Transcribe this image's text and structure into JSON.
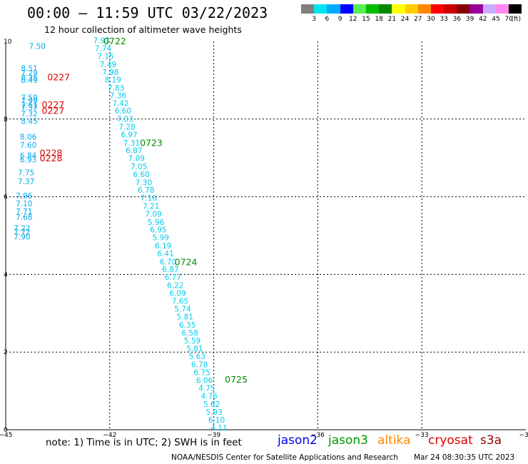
{
  "header": {
    "title": "00:00 – 11:59 UTC 03/22/2023",
    "subtitle": "12 hour collection of altimeter wave heights"
  },
  "color_scale": {
    "unit_label": "(ft)",
    "cells": [
      {
        "label": "3",
        "color": "#808080"
      },
      {
        "label": "6",
        "color": "#00e5ee"
      },
      {
        "label": "9",
        "color": "#00aaff"
      },
      {
        "label": "12",
        "color": "#0000ff"
      },
      {
        "label": "15",
        "color": "#55ee55"
      },
      {
        "label": "18",
        "color": "#00bb00"
      },
      {
        "label": "21",
        "color": "#008800"
      },
      {
        "label": "24",
        "color": "#ffff00"
      },
      {
        "label": "27",
        "color": "#ffcc00"
      },
      {
        "label": "30",
        "color": "#ff8800"
      },
      {
        "label": "33",
        "color": "#ff0000"
      },
      {
        "label": "36",
        "color": "#cc0000"
      },
      {
        "label": "39",
        "color": "#880000"
      },
      {
        "label": "42",
        "color": "#990099"
      },
      {
        "label": "45",
        "color": "#ccaaff"
      },
      {
        "label": "70",
        "color": "#ff88ee"
      },
      {
        "label": "",
        "color": "#000000"
      }
    ]
  },
  "map": {
    "lon_range": [
      -45,
      -30
    ],
    "lat_range": [
      0,
      10
    ],
    "x_ticks": [
      {
        "value": -45,
        "label": "−45"
      },
      {
        "value": -42,
        "label": "−42"
      },
      {
        "value": -39,
        "label": "−39"
      },
      {
        "value": -36,
        "label": "−36"
      },
      {
        "value": -33,
        "label": "−33"
      },
      {
        "value": -30,
        "label": "−30"
      }
    ],
    "y_ticks": [
      {
        "value": 0,
        "label": "0"
      },
      {
        "value": 2,
        "label": "2"
      },
      {
        "value": 4,
        "label": "4"
      },
      {
        "value": 6,
        "label": "6"
      },
      {
        "value": 8,
        "label": "8"
      },
      {
        "value": 10,
        "label": "10"
      }
    ],
    "gridlines": true
  },
  "chart_data": {
    "type": "scatter",
    "x_axis": "longitude",
    "y_axis": "latitude",
    "xlim": [
      -45,
      -30
    ],
    "ylim": [
      0,
      10
    ],
    "series": [
      {
        "name": "jason3",
        "color": "#00ccee",
        "points": [
          {
            "x": -42.48,
            "y": 9.95,
            "label": "7.97"
          },
          {
            "x": -42.43,
            "y": 9.75,
            "label": "7.74"
          },
          {
            "x": -42.36,
            "y": 9.55,
            "label": "7.15"
          },
          {
            "x": -42.29,
            "y": 9.34,
            "label": "7.49"
          },
          {
            "x": -42.22,
            "y": 9.14,
            "label": "7.98"
          },
          {
            "x": -42.15,
            "y": 8.94,
            "label": "8.19"
          },
          {
            "x": -42.06,
            "y": 8.73,
            "label": "7.83"
          },
          {
            "x": -42.0,
            "y": 8.54,
            "label": "7.36"
          },
          {
            "x": -41.93,
            "y": 8.34,
            "label": "7.42"
          },
          {
            "x": -41.86,
            "y": 8.14,
            "label": "6.60"
          },
          {
            "x": -41.8,
            "y": 7.93,
            "label": "7.03"
          },
          {
            "x": -41.74,
            "y": 7.73,
            "label": "7.28"
          },
          {
            "x": -41.68,
            "y": 7.53,
            "label": "6.97"
          },
          {
            "x": -41.61,
            "y": 7.32,
            "label": "7.31"
          },
          {
            "x": -41.54,
            "y": 7.12,
            "label": "6.87"
          },
          {
            "x": -41.47,
            "y": 6.92,
            "label": "7.09"
          },
          {
            "x": -41.4,
            "y": 6.71,
            "label": "7.05"
          },
          {
            "x": -41.33,
            "y": 6.51,
            "label": "6.60"
          },
          {
            "x": -41.26,
            "y": 6.3,
            "label": "7.30"
          },
          {
            "x": -41.19,
            "y": 6.1,
            "label": "6.78"
          },
          {
            "x": -41.12,
            "y": 5.9,
            "label": "7.16"
          },
          {
            "x": -41.05,
            "y": 5.69,
            "label": "7.21"
          },
          {
            "x": -40.98,
            "y": 5.49,
            "label": "7.09"
          },
          {
            "x": -40.91,
            "y": 5.28,
            "label": "5.96"
          },
          {
            "x": -40.84,
            "y": 5.08,
            "label": "6.95"
          },
          {
            "x": -40.77,
            "y": 4.88,
            "label": "5.99"
          },
          {
            "x": -40.7,
            "y": 4.67,
            "label": "6.19"
          },
          {
            "x": -40.63,
            "y": 4.47,
            "label": "6.41"
          },
          {
            "x": -40.56,
            "y": 4.26,
            "label": "6.70"
          },
          {
            "x": -40.49,
            "y": 4.06,
            "label": "6.87"
          },
          {
            "x": -40.42,
            "y": 3.86,
            "label": "6.77"
          },
          {
            "x": -40.35,
            "y": 3.65,
            "label": "6.22"
          },
          {
            "x": -40.28,
            "y": 3.45,
            "label": "6.09"
          },
          {
            "x": -40.21,
            "y": 3.24,
            "label": "7.65"
          },
          {
            "x": -40.14,
            "y": 3.04,
            "label": "5.74"
          },
          {
            "x": -40.07,
            "y": 2.84,
            "label": "5.81"
          },
          {
            "x": -40.0,
            "y": 2.63,
            "label": "6.35"
          },
          {
            "x": -39.93,
            "y": 2.43,
            "label": "6.58"
          },
          {
            "x": -39.86,
            "y": 2.22,
            "label": "5.59"
          },
          {
            "x": -39.79,
            "y": 2.02,
            "label": "5.81"
          },
          {
            "x": -39.72,
            "y": 1.82,
            "label": "5.63"
          },
          {
            "x": -39.65,
            "y": 1.61,
            "label": "6.78"
          },
          {
            "x": -39.58,
            "y": 1.41,
            "label": "6.75"
          },
          {
            "x": -39.51,
            "y": 1.2,
            "label": "6.06"
          },
          {
            "x": -39.44,
            "y": 1.0,
            "label": "4.75"
          },
          {
            "x": -39.37,
            "y": 0.8,
            "label": "4.76"
          },
          {
            "x": -39.3,
            "y": 0.59,
            "label": "5.62"
          },
          {
            "x": -39.23,
            "y": 0.39,
            "label": "5.93"
          },
          {
            "x": -39.16,
            "y": 0.18,
            "label": "6.10"
          },
          {
            "x": -39.09,
            "y": -0.02,
            "label": "4.11"
          }
        ],
        "time_labels": [
          {
            "x": -42.18,
            "y": 9.93,
            "label": "0722"
          },
          {
            "x": -41.13,
            "y": 7.31,
            "label": "0723"
          },
          {
            "x": -40.13,
            "y": 4.24,
            "label": "0724"
          },
          {
            "x": -38.68,
            "y": 1.21,
            "label": "0725"
          }
        ]
      },
      {
        "name": "cryosat",
        "color": "#00aaee",
        "points": [
          {
            "x": -44.33,
            "y": 9.81,
            "label": "7.50"
          },
          {
            "x": -44.56,
            "y": 9.24,
            "label": "8.51"
          },
          {
            "x": -44.56,
            "y": 9.12,
            "label": "7.29"
          },
          {
            "x": -44.56,
            "y": 9.0,
            "label": "8.35"
          },
          {
            "x": -44.56,
            "y": 8.93,
            "label": "8.49"
          },
          {
            "x": -44.56,
            "y": 8.48,
            "label": "7.59"
          },
          {
            "x": -44.56,
            "y": 8.4,
            "label": "7.99"
          },
          {
            "x": -44.56,
            "y": 8.29,
            "label": "7.61"
          },
          {
            "x": -44.56,
            "y": 8.23,
            "label": "7.37"
          },
          {
            "x": -44.56,
            "y": 8.07,
            "label": "7.32"
          },
          {
            "x": -44.56,
            "y": 7.88,
            "label": "8.45"
          },
          {
            "x": -44.59,
            "y": 7.47,
            "label": "8.06"
          },
          {
            "x": -44.59,
            "y": 7.26,
            "label": "7.60"
          },
          {
            "x": -44.59,
            "y": 6.99,
            "label": "6.84"
          },
          {
            "x": -44.59,
            "y": 6.88,
            "label": "6.93"
          },
          {
            "x": -44.65,
            "y": 6.55,
            "label": "7.75"
          },
          {
            "x": -44.65,
            "y": 6.32,
            "label": "7.37"
          },
          {
            "x": -44.71,
            "y": 5.96,
            "label": "7.96"
          },
          {
            "x": -44.71,
            "y": 5.75,
            "label": "7.10"
          },
          {
            "x": -44.71,
            "y": 5.55,
            "label": "7.71"
          },
          {
            "x": -44.71,
            "y": 5.4,
            "label": "7.68"
          },
          {
            "x": -44.77,
            "y": 5.12,
            "label": "7.22"
          },
          {
            "x": -44.77,
            "y": 5.02,
            "label": "7.72"
          },
          {
            "x": -44.77,
            "y": 4.9,
            "label": "7.90"
          }
        ],
        "time_labels": [
          {
            "x": -43.8,
            "y": 9.0,
            "label": "0227"
          },
          {
            "x": -43.96,
            "y": 8.29,
            "label": "0227"
          },
          {
            "x": -43.96,
            "y": 8.13,
            "label": "0227"
          },
          {
            "x": -44.02,
            "y": 7.05,
            "label": "0228"
          },
          {
            "x": -44.02,
            "y": 6.91,
            "label": "0228"
          }
        ]
      }
    ]
  },
  "footer": {
    "note": "note:  1) Time is in UTC;  2) SWH is in feet",
    "satellites": [
      {
        "label": "jason2",
        "color": "#0000ee"
      },
      {
        "label": "jason3",
        "color": "#009900"
      },
      {
        "label": "altika",
        "color": "#ff8800"
      },
      {
        "label": "cryosat",
        "color": "#dd0000"
      },
      {
        "label": "s3a",
        "color": "#990000"
      }
    ],
    "credit": "NOAA/NESDIS Center for Satellite Applications and Research",
    "generated": "Mar 24 08:30:35 UTC 2023"
  }
}
